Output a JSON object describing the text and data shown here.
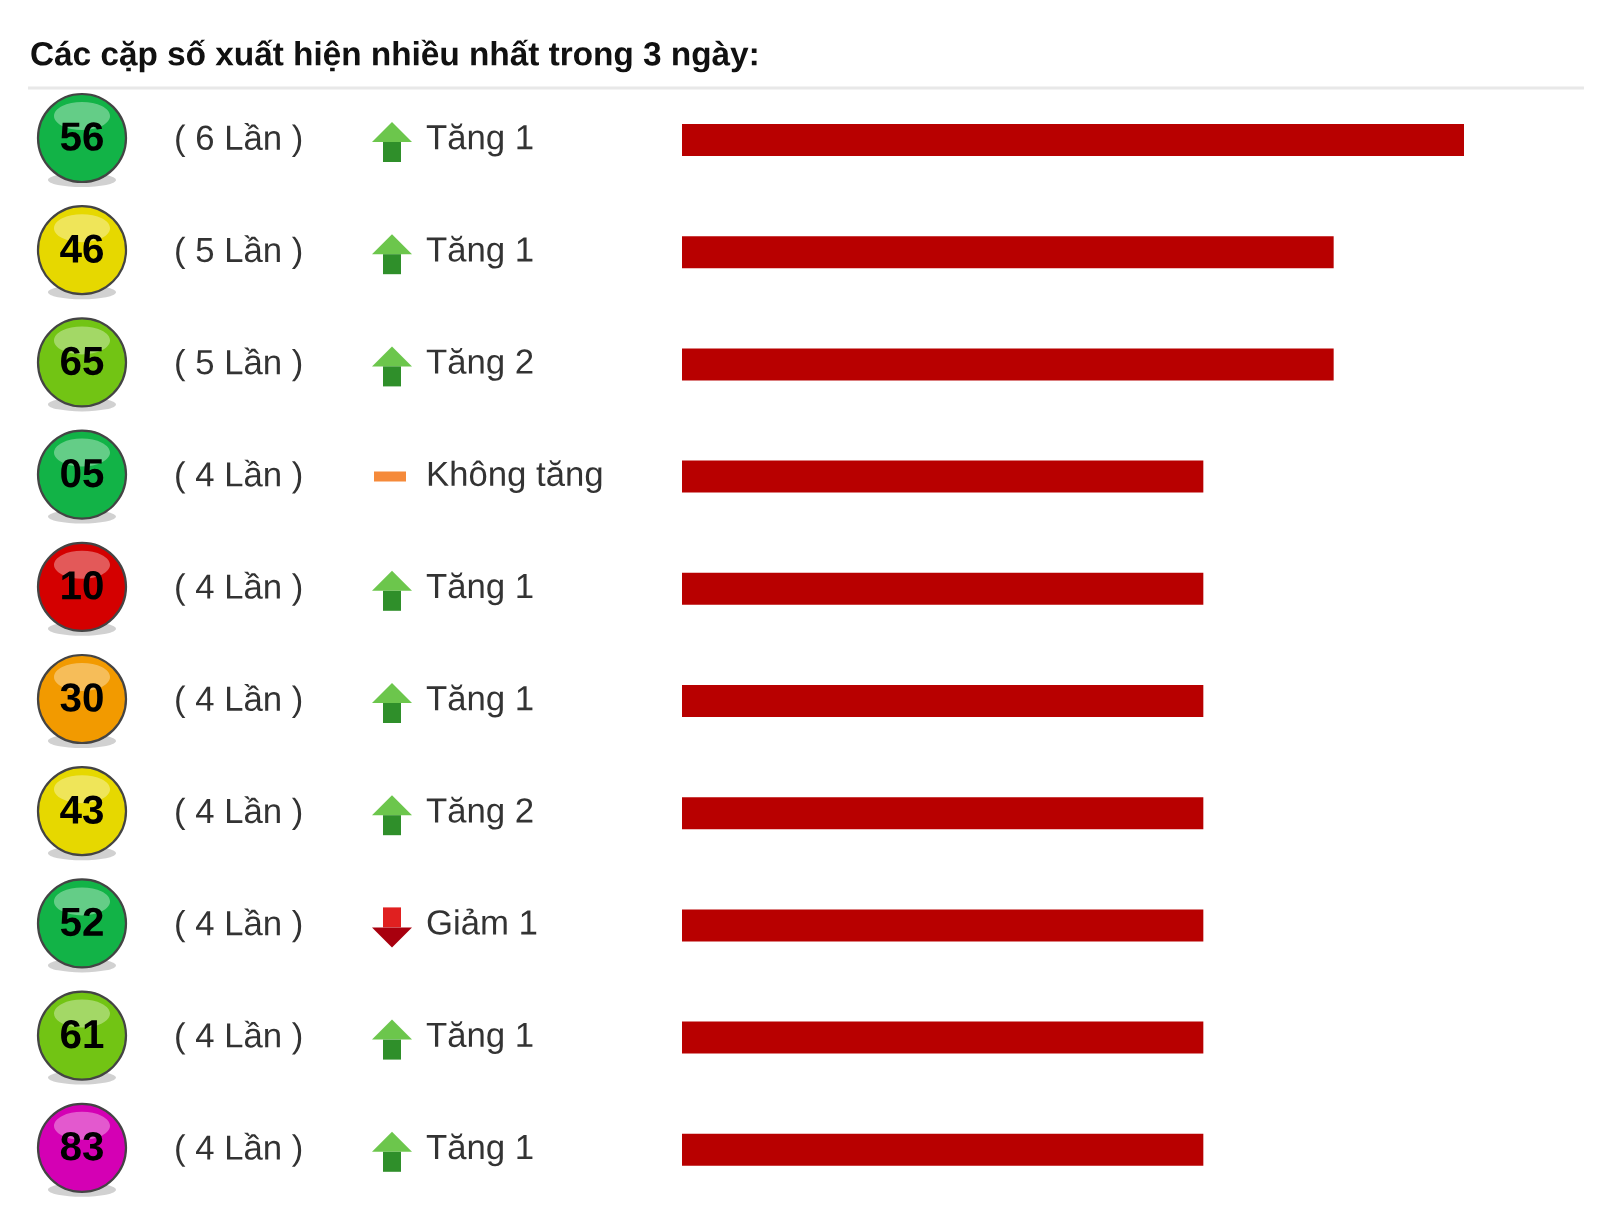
{
  "chart_data": {
    "type": "bar",
    "orientation": "horizontal",
    "title": "Các cặp số xuất hiện nhiều nhất trong 3 ngày:",
    "categories": [
      "56",
      "46",
      "65",
      "05",
      "10",
      "30",
      "43",
      "52",
      "61",
      "83"
    ],
    "values": [
      6,
      5,
      5,
      4,
      4,
      4,
      4,
      4,
      4,
      4
    ],
    "value_labels": [
      "( 6 Lần )",
      "( 5 Lần )",
      "( 5 Lần )",
      "( 4 Lần )",
      "( 4 Lần )",
      "( 4 Lần )",
      "( 4 Lần )",
      "( 4 Lần )",
      "( 4 Lần )",
      "( 4 Lần )"
    ],
    "color": "#b80000",
    "annotations": [
      "Tăng 1",
      "Tăng 1",
      "Tăng 2",
      "Không tăng",
      "Tăng 1",
      "Tăng 1",
      "Tăng 2",
      "Giảm 1",
      "Tăng 1",
      "Tăng 1"
    ]
  }
}
